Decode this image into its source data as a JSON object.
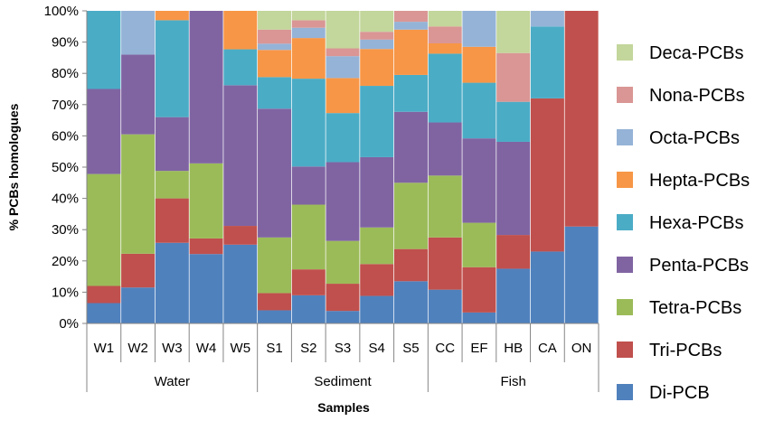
{
  "chart_data": {
    "type": "bar",
    "stacked": true,
    "percent": true,
    "title": "",
    "xlabel": "Samples",
    "ylabel": "% PCBs homologues",
    "ylim": [
      0,
      100
    ],
    "yticks": [
      "0%",
      "10%",
      "20%",
      "30%",
      "40%",
      "50%",
      "60%",
      "70%",
      "80%",
      "90%",
      "100%"
    ],
    "categories": [
      "W1",
      "W2",
      "W3",
      "W4",
      "W5",
      "S1",
      "S2",
      "S3",
      "S4",
      "S5",
      "CC",
      "EF",
      "HB",
      "CA",
      "ON"
    ],
    "groups": [
      {
        "name": "Water",
        "categories": [
          "W1",
          "W2",
          "W3",
          "W4",
          "W5"
        ]
      },
      {
        "name": "Sediment",
        "categories": [
          "S1",
          "S2",
          "S3",
          "S4",
          "S5"
        ]
      },
      {
        "name": "Fish",
        "categories": [
          "CC",
          "EF",
          "HB",
          "CA",
          "ON"
        ]
      }
    ],
    "legend_position": "right",
    "grid": false,
    "series": [
      {
        "name": "Di-PCB",
        "color": "#4F81BD",
        "values": [
          6.5,
          11.5,
          25.8,
          22.2,
          25.2,
          4.2,
          9,
          4,
          8.8,
          13.5,
          10.8,
          3.5,
          17.5,
          23,
          31
        ]
      },
      {
        "name": "Tri-PCBs",
        "color": "#C0504D",
        "values": [
          5.5,
          10.8,
          14.2,
          5,
          6,
          5.5,
          8.3,
          8.7,
          10.2,
          10.3,
          16.7,
          14.5,
          10.8,
          49,
          69
        ]
      },
      {
        "name": "Tetra-PCBs",
        "color": "#9BBB59",
        "values": [
          35.8,
          38.2,
          8.8,
          24,
          0,
          17.8,
          20.7,
          13.7,
          11.7,
          21.2,
          19.8,
          14.2,
          0,
          0,
          0
        ]
      },
      {
        "name": "Penta-PCBs",
        "color": "#8064A2",
        "values": [
          27.2,
          25.5,
          17.2,
          48.8,
          45,
          41.2,
          12.2,
          25.2,
          22.5,
          22.7,
          17,
          27,
          29.8,
          0,
          0
        ]
      },
      {
        "name": "Hexa-PCBs",
        "color": "#4BACC6",
        "values": [
          25,
          0,
          31,
          0,
          11.5,
          10.1,
          28.1,
          15.7,
          22.8,
          11.8,
          22,
          17.8,
          12.8,
          23,
          0
        ]
      },
      {
        "name": "Hepta-PCBs",
        "color": "#F79646",
        "values": [
          0,
          0,
          3,
          0,
          12.3,
          8.7,
          13,
          11.2,
          11.8,
          14.5,
          3.3,
          11.5,
          0,
          0,
          0
        ]
      },
      {
        "name": "Octa-PCBs",
        "color": "#95B3D7",
        "values": [
          0,
          14,
          0,
          0,
          0,
          2,
          3.3,
          7,
          3,
          2.5,
          0,
          11.5,
          0,
          5,
          0
        ]
      },
      {
        "name": "Nona-PCBs",
        "color": "#D99694",
        "values": [
          0,
          0,
          0,
          0,
          0,
          4.5,
          2.4,
          2.5,
          2.5,
          3.5,
          5.4,
          0,
          15.6,
          0,
          0
        ]
      },
      {
        "name": "Deca-PCBs",
        "color": "#C3D69B",
        "values": [
          0,
          0,
          0,
          0,
          0,
          6,
          3,
          12,
          6.7,
          0,
          5,
          0,
          13.5,
          0,
          0
        ]
      }
    ]
  }
}
